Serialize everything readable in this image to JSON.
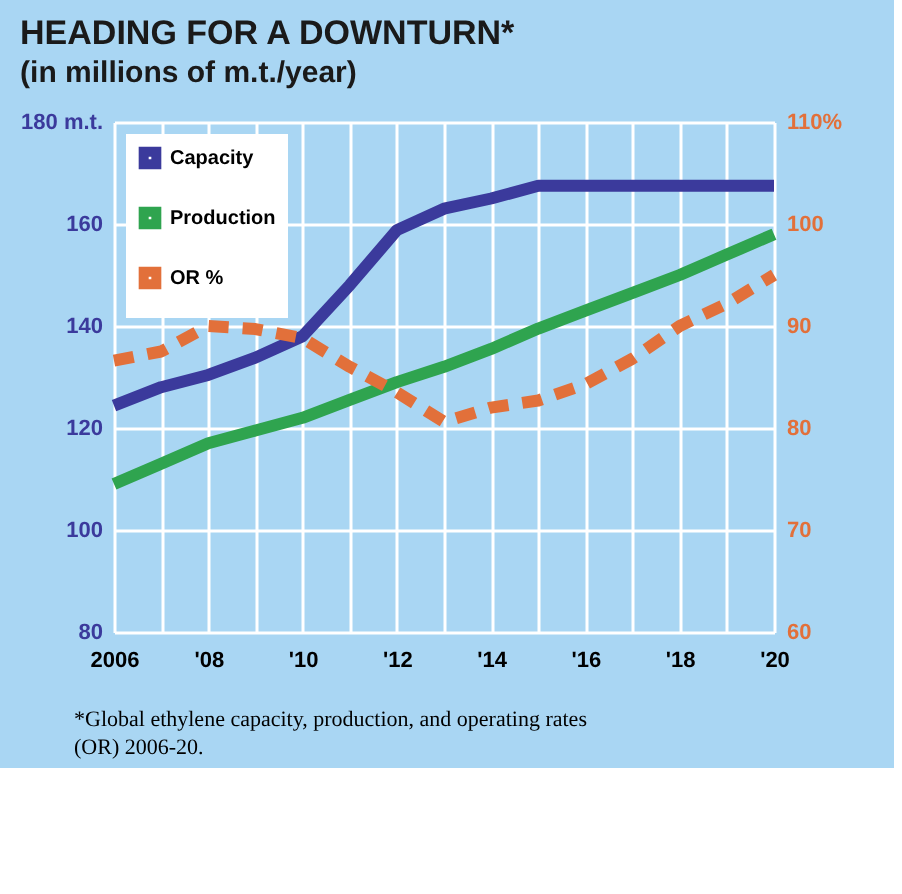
{
  "chart_data": {
    "type": "line",
    "title": "HEADING FOR A DOWNTURN*",
    "subtitle": "(in millions of m.t./year)",
    "x": [
      2006,
      2007,
      2008,
      2009,
      2010,
      2011,
      2012,
      2013,
      2014,
      2015,
      2016,
      2017,
      2018,
      2019,
      2020
    ],
    "xlim": [
      2006,
      2020
    ],
    "xticks": [
      2006,
      {
        "value": 2007,
        "label": null
      },
      {
        "value": 2008,
        "label": "'08"
      },
      {
        "value": 2009,
        "label": null
      },
      {
        "value": 2010,
        "label": "'10"
      },
      {
        "value": 2011,
        "label": null
      },
      {
        "value": 2012,
        "label": "'12"
      },
      {
        "value": 2013,
        "label": null
      },
      {
        "value": 2014,
        "label": "'14"
      },
      {
        "value": 2015,
        "label": null
      },
      {
        "value": 2016,
        "label": "'16"
      },
      {
        "value": 2017,
        "label": null
      },
      {
        "value": 2018,
        "label": "'18"
      },
      {
        "value": 2019,
        "label": null
      },
      {
        "value": 2020,
        "label": "'20"
      }
    ],
    "ylim": [
      80,
      180
    ],
    "yticks": [
      80,
      100,
      120,
      140,
      160,
      {
        "value": 180,
        "label": "180 m.t."
      }
    ],
    "y2lim": [
      60,
      110
    ],
    "y2ticks": [
      60,
      70,
      80,
      90,
      100,
      {
        "value": 110,
        "label": "110%"
      }
    ],
    "series": [
      {
        "name": "Capacity",
        "color": "#3b3a9c",
        "line_style": "solid",
        "values": [
          124.4,
          128,
          130.4,
          133.8,
          138,
          148,
          158.8,
          163,
          165,
          167.5,
          167.5,
          167.5,
          167.5,
          167.5,
          167.5
        ]
      },
      {
        "name": "Production",
        "color": "#2fa44f",
        "line_style": "solid",
        "values": [
          109,
          113,
          117,
          119.5,
          122,
          125.5,
          129,
          132,
          135.5,
          139.5,
          143,
          146.5,
          150,
          154,
          158
        ]
      },
      {
        "name": "OR %",
        "color": "#e2703a",
        "line_style": "dashed",
        "axis": "y2",
        "values": [
          86.6,
          87.5,
          90,
          89.7,
          88.8,
          86,
          83.5,
          80.6,
          82,
          82.7,
          84.3,
          86.8,
          90,
          92.2,
          95
        ]
      }
    ],
    "grid": true,
    "legend": "top left",
    "annotations": [
      "*Global ethylene capacity, production, and operating rates (OR) 2006-20."
    ]
  }
}
